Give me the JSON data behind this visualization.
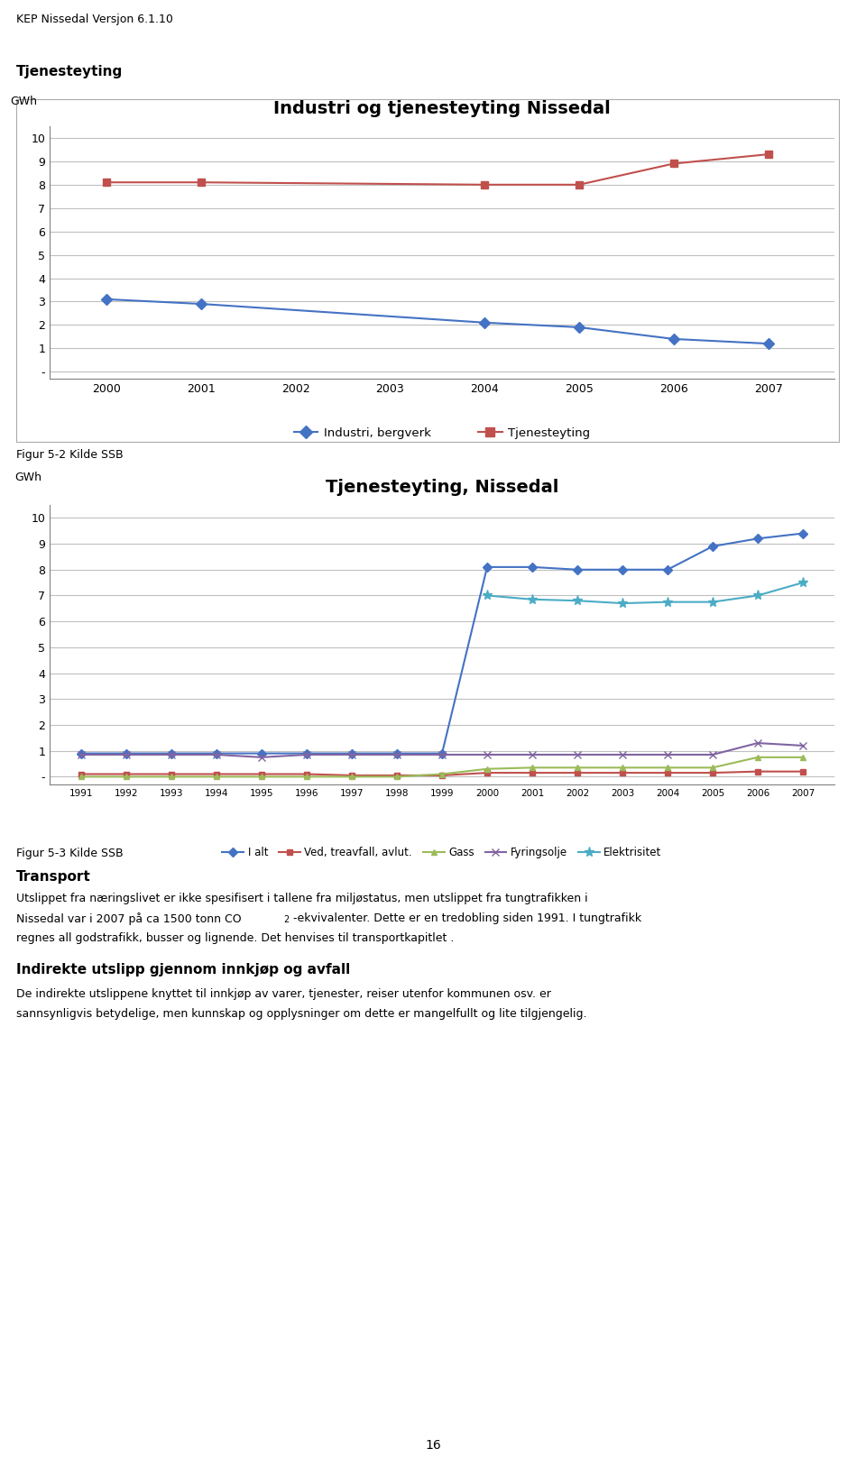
{
  "page_header": "KEP Nissedal Versjon 6.1.10",
  "section1_label": "Tjenesteyting",
  "chart1_title": "Industri og tjenesteyting Nissedal",
  "chart1_ylabel": "GWh",
  "chart1_years": [
    2000,
    2001,
    2004,
    2005,
    2006,
    2007
  ],
  "chart1_industri": [
    3.1,
    2.9,
    2.1,
    1.9,
    1.4,
    1.2
  ],
  "chart1_tjenesteyting": [
    8.1,
    8.1,
    8.0,
    8.0,
    8.9,
    9.3
  ],
  "chart1_ylim": [
    -0.3,
    10.5
  ],
  "chart1_yticks": [
    0,
    1,
    2,
    3,
    4,
    5,
    6,
    7,
    8,
    9,
    10
  ],
  "chart1_ytick_labels": [
    "-",
    "1",
    "2",
    "3",
    "4",
    "5",
    "6",
    "7",
    "8",
    "9",
    "10"
  ],
  "chart1_xticks": [
    2000,
    2001,
    2002,
    2003,
    2004,
    2005,
    2006,
    2007
  ],
  "chart1_industri_color": "#4472C4",
  "chart1_tjenesteyting_color": "#C0504D",
  "chart1_legend1": "Industri, bergverk",
  "chart1_legend2": "Tjenesteyting",
  "figur52_label": "Figur 5-2 Kilde SSB",
  "chart2_title": "Tjenesteyting, Nissedal",
  "chart2_ylabel": "GWh",
  "chart2_years": [
    1991,
    1992,
    1993,
    1994,
    1995,
    1996,
    1997,
    1998,
    1999,
    2000,
    2001,
    2002,
    2003,
    2004,
    2005,
    2006,
    2007
  ],
  "chart2_ialt": [
    0.9,
    0.9,
    0.9,
    0.9,
    0.9,
    0.9,
    0.9,
    0.9,
    0.9,
    8.1,
    8.1,
    8.0,
    8.0,
    8.0,
    8.9,
    9.2,
    9.4
  ],
  "chart2_ved": [
    0.1,
    0.1,
    0.1,
    0.1,
    0.1,
    0.1,
    0.05,
    0.05,
    0.05,
    0.15,
    0.15,
    0.15,
    0.15,
    0.15,
    0.15,
    0.2,
    0.2
  ],
  "chart2_gass": [
    0.0,
    0.0,
    0.0,
    0.0,
    0.0,
    0.0,
    0.0,
    0.0,
    0.1,
    0.3,
    0.35,
    0.35,
    0.35,
    0.35,
    0.35,
    0.75,
    0.75
  ],
  "chart2_fyringsolje": [
    0.85,
    0.85,
    0.85,
    0.85,
    0.75,
    0.85,
    0.85,
    0.85,
    0.85,
    0.85,
    0.85,
    0.85,
    0.85,
    0.85,
    0.85,
    1.3,
    1.2
  ],
  "chart2_elektrisitet": [
    null,
    null,
    null,
    null,
    null,
    null,
    null,
    null,
    null,
    7.0,
    6.85,
    6.8,
    6.7,
    6.75,
    6.75,
    7.0,
    7.5
  ],
  "chart2_ylim": [
    -0.3,
    10.5
  ],
  "chart2_yticks": [
    0,
    1,
    2,
    3,
    4,
    5,
    6,
    7,
    8,
    9,
    10
  ],
  "chart2_ytick_labels": [
    "-",
    "1",
    "2",
    "3",
    "4",
    "5",
    "6",
    "7",
    "8",
    "9",
    "10"
  ],
  "chart2_xticks": [
    1991,
    1992,
    1993,
    1994,
    1995,
    1996,
    1997,
    1998,
    1999,
    2000,
    2001,
    2002,
    2003,
    2004,
    2005,
    2006,
    2007
  ],
  "chart2_ialt_color": "#4472C4",
  "chart2_ved_color": "#C0504D",
  "chart2_gass_color": "#9BBB59",
  "chart2_fyringsolje_color": "#8064A2",
  "chart2_elektrisitet_color": "#4BACC6",
  "chart2_legend_ialt": "I alt",
  "chart2_legend_ved": "Ved, treavfall, avlut.",
  "chart2_legend_gass": "Gass",
  "chart2_legend_fyringsolje": "Fyringsolje",
  "chart2_legend_elektrisitet": "Elektrisitet",
  "figur53_label": "Figur 5-3 Kilde SSB",
  "transport_header": "Transport",
  "transport_text1": "Utslippet fra næringslivet er ikke spesifisert i tallene fra miljøstatus, men utslippet fra tungtrafikken i",
  "transport_text2": "Nissedal var i 2007 på ca 1500 tonn CO",
  "transport_text2_sub": "2",
  "transport_text2_end": "-ekvivalenter. Dette er en tredobling siden 1991. I tungtrafikk",
  "transport_text3": "regnes all godstrafikk, busser og lignende. Det henvises til transportkapitlet .",
  "indirekte_header": "Indirekte utslipp gjennom innkjøp og avfall",
  "indirekte_text1": "De indirekte utslippene knyttet til innkjøp av varer, tjenester, reiser utenfor kommunen osv. er",
  "indirekte_text2": "sannsynligvis betydelige, men kunnskap og opplysninger om dette er mangelfullt og lite tilgjengelig.",
  "page_number": "16",
  "chart_bg": "#FFFFFF",
  "grid_color": "#C0C0C0",
  "border_color": "#808080"
}
